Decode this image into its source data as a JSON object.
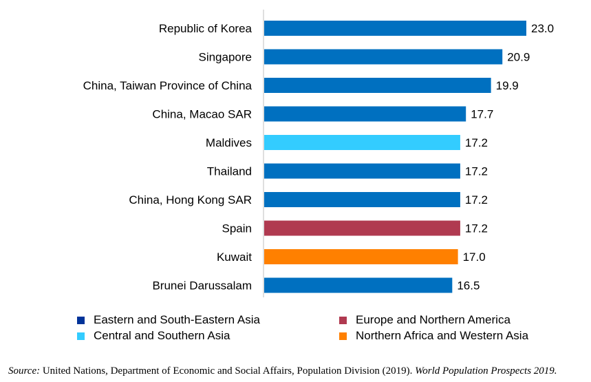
{
  "chart_data": {
    "type": "bar",
    "orientation": "horizontal",
    "categories": [
      "Republic of Korea",
      "Singapore",
      "China, Taiwan Province of China",
      "China, Macao SAR",
      "Maldives",
      "Thailand",
      "China, Hong Kong SAR",
      "Spain",
      "Kuwait",
      "Brunei Darussalam"
    ],
    "values": [
      23.0,
      20.9,
      19.9,
      17.7,
      17.2,
      17.2,
      17.2,
      17.2,
      17.0,
      16.5
    ],
    "value_labels": [
      "23.0",
      "20.9",
      "19.9",
      "17.7",
      "17.2",
      "17.2",
      "17.2",
      "17.2",
      "17.0",
      "16.5"
    ],
    "groups": [
      "Eastern and South-Eastern Asia",
      "Eastern and South-Eastern Asia",
      "Eastern and South-Eastern Asia",
      "Eastern and South-Eastern Asia",
      "Central and Southern Asia",
      "Eastern and South-Eastern Asia",
      "Eastern and South-Eastern Asia",
      "Europe and Northern America",
      "Northern Africa and Western Asia",
      "Eastern and South-Eastern Asia"
    ],
    "xlim": [
      0,
      23.0
    ],
    "grid": false,
    "title": "",
    "xlabel": "",
    "ylabel": "",
    "legend": {
      "placement": "bottom",
      "entries": [
        {
          "name": "Eastern and South-Eastern Asia",
          "legend_color": "#003399",
          "bar_color": "#0070C0"
        },
        {
          "name": "Europe and Northern America",
          "legend_color": "#B03A50",
          "bar_color": "#B03A50"
        },
        {
          "name": "Central and Southern Asia",
          "legend_color": "#33CCFF",
          "bar_color": "#33CCFF"
        },
        {
          "name": "Northern Africa and Western Asia",
          "legend_color": "#FF8000",
          "bar_color": "#FF8000"
        }
      ]
    }
  },
  "source": {
    "lead": "Source:",
    "body": " United Nations, Department of Economic and Social Affairs, Population Division (2019).  ",
    "publication": "World Population Prospects 2019."
  }
}
